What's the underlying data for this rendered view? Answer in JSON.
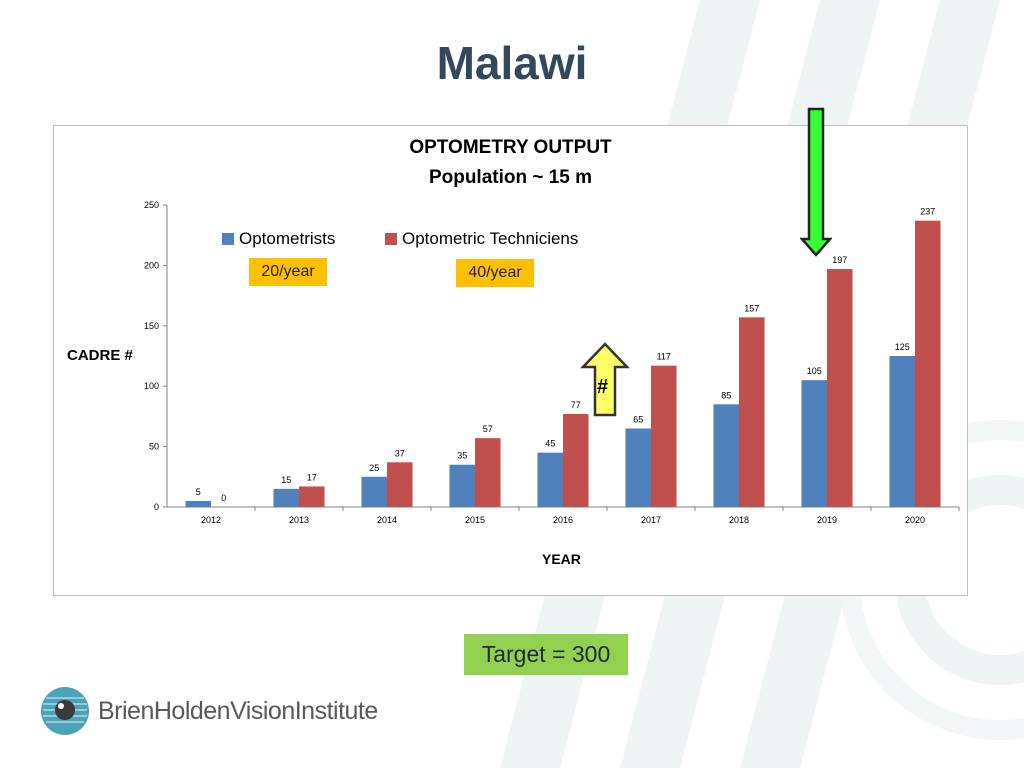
{
  "slide": {
    "title": "Malawi",
    "target_label": "Target = 300",
    "logo_text": "BrienHoldenVisionInstitute",
    "rate_badges": [
      "20/year",
      "40/year"
    ],
    "hash_marker": "#"
  },
  "colors": {
    "optometrists": "#4f81bd",
    "technicians": "#c0504d",
    "badge": "#ffc000",
    "target": "#92d050",
    "arrow_green": "#33ff33",
    "arrow_yellow": "#ffff66",
    "title": "#34485c"
  },
  "chart_data": {
    "type": "bar",
    "title": "OPTOMETRY OUTPUT",
    "subtitle": "Population ~ 15 m",
    "xlabel": "YEAR",
    "ylabel": "CADRE #",
    "ylim": [
      0,
      250
    ],
    "yticks": [
      0,
      50,
      100,
      150,
      200,
      250
    ],
    "grid": false,
    "legend_position": "top-left",
    "categories": [
      "2012",
      "2013",
      "2014",
      "2015",
      "2016",
      "2017",
      "2018",
      "2019",
      "2020"
    ],
    "series": [
      {
        "name": "Optometrists",
        "values": [
          5,
          15,
          25,
          35,
          45,
          65,
          85,
          105,
          125
        ]
      },
      {
        "name": "Optometric Techniciens",
        "values": [
          0,
          17,
          37,
          57,
          77,
          117,
          157,
          197,
          237
        ]
      }
    ]
  }
}
